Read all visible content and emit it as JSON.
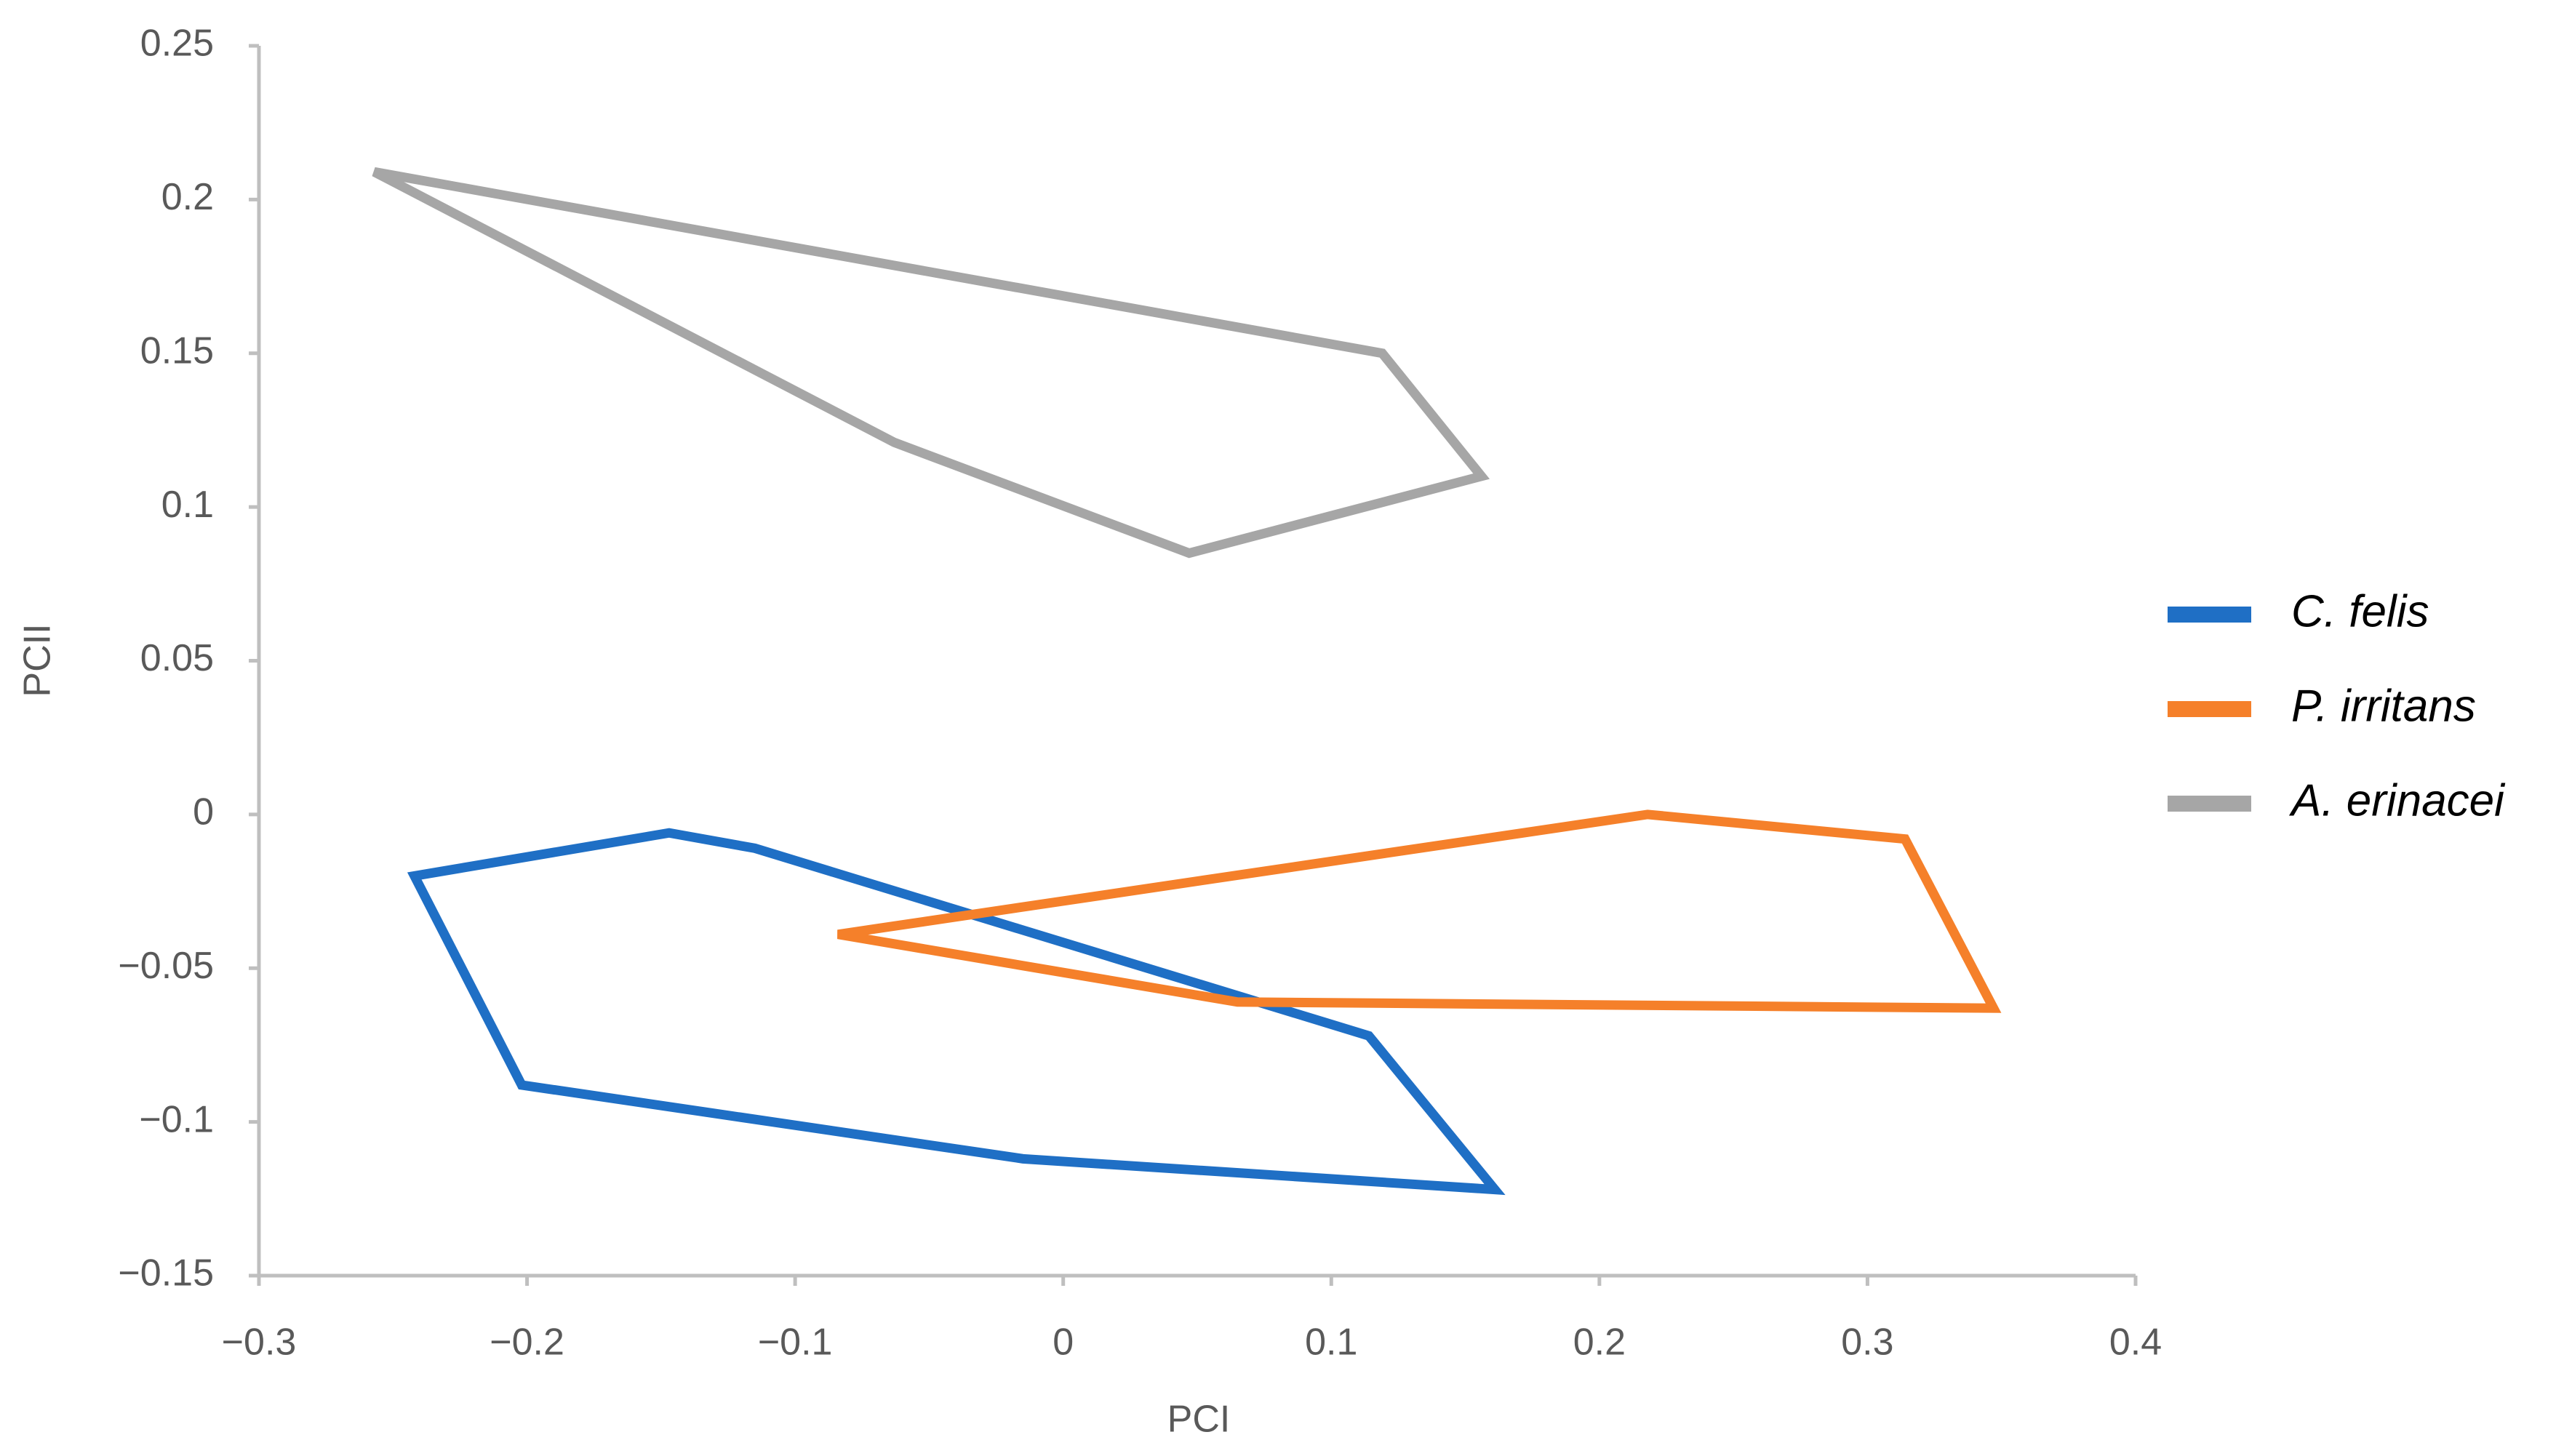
{
  "chart_data": {
    "type": "line",
    "x_label": "PCI",
    "y_label": "PCII",
    "xlim": [
      -0.3,
      0.4
    ],
    "xticks": [
      {
        "value": -0.3,
        "label": "−0.3"
      },
      {
        "value": -0.2,
        "label": "−0.2"
      },
      {
        "value": -0.1,
        "label": "−0.1"
      },
      0,
      0.1,
      0.2,
      0.3,
      0.4
    ],
    "ylim": [
      -0.15,
      0.25
    ],
    "yticks": [
      {
        "value": -0.15,
        "label": "−0.15"
      },
      {
        "value": -0.1,
        "label": "−0.1"
      },
      {
        "value": -0.05,
        "label": "−0.05"
      },
      0,
      0.05,
      0.1,
      0.15,
      0.2,
      0.25
    ],
    "legend": "right",
    "series": [
      {
        "name": "C. felis",
        "color": "#1f6fc5",
        "x": [
          -0.242,
          -0.147,
          -0.115,
          0.114,
          0.161,
          -0.015,
          -0.202
        ],
        "values": [
          -0.02,
          -0.006,
          -0.011,
          -0.072,
          -0.122,
          -0.112,
          -0.088
        ]
      },
      {
        "name": "P. irritans",
        "color": "#f5802a",
        "x": [
          -0.084,
          0.218,
          0.314,
          0.347,
          0.065
        ],
        "values": [
          -0.039,
          0.0,
          -0.008,
          -0.063,
          -0.061
        ]
      },
      {
        "name": "A. erinacei",
        "color": "#a6a6a6",
        "x": [
          -0.257,
          0.119,
          0.156,
          0.047,
          -0.063
        ],
        "values": [
          0.209,
          0.15,
          0.11,
          0.085,
          0.121
        ]
      }
    ]
  }
}
